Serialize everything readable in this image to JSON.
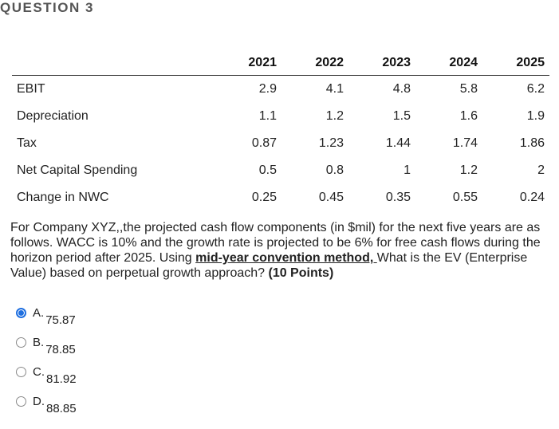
{
  "header": {
    "title": "QUESTION 3"
  },
  "table": {
    "columns": [
      "",
      "2021",
      "2022",
      "2023",
      "2024",
      "2025"
    ],
    "rows": [
      {
        "label": "EBIT",
        "values": [
          "2.9",
          "4.1",
          "4.8",
          "5.8",
          "6.2"
        ]
      },
      {
        "label": "Depreciation",
        "values": [
          "1.1",
          "1.2",
          "1.5",
          "1.6",
          "1.9"
        ]
      },
      {
        "label": "Tax",
        "values": [
          "0.87",
          "1.23",
          "1.44",
          "1.74",
          "1.86"
        ]
      },
      {
        "label": "Net Capital Spending",
        "values": [
          "0.5",
          "0.8",
          "1",
          "1.2",
          "2"
        ]
      },
      {
        "label": "Change in NWC",
        "values": [
          "0.25",
          "0.45",
          "0.35",
          "0.55",
          "0.24"
        ]
      }
    ]
  },
  "question": {
    "text_part1": "For Company XYZ,,the projected cash flow components (in $mil) for the next five years are as follows.  WACC is 10% and the growth rate is projected to be 6% for free cash flows during the horizon period after 2025. Using ",
    "emphasis": "mid-year convention method, ",
    "text_part2": " What is the EV (Enterprise Value) based on perpetual growth approach? ",
    "points": "(10 Points)"
  },
  "options": [
    {
      "letter": "A.",
      "value": "75.87",
      "selected": true
    },
    {
      "letter": "B.",
      "value": "78.85",
      "selected": false
    },
    {
      "letter": "C.",
      "value": "81.92",
      "selected": false
    },
    {
      "letter": "D.",
      "value": "88.85",
      "selected": false
    }
  ]
}
